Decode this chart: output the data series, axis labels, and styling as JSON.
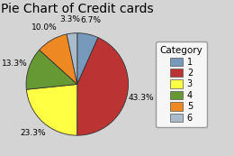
{
  "title": "Pie Chart of Credit cards",
  "categories": [
    "1",
    "2",
    "3",
    "4",
    "5",
    "6"
  ],
  "values": [
    6.7,
    43.3,
    23.3,
    13.3,
    10.0,
    3.3
  ],
  "colors": [
    "#7799BB",
    "#BB3333",
    "#FFFF44",
    "#669933",
    "#EE8822",
    "#AABCCC"
  ],
  "legend_title": "Category",
  "background_color": "#D4D4D4",
  "startangle": 90,
  "title_fontsize": 10,
  "label_fontsize": 6.5
}
